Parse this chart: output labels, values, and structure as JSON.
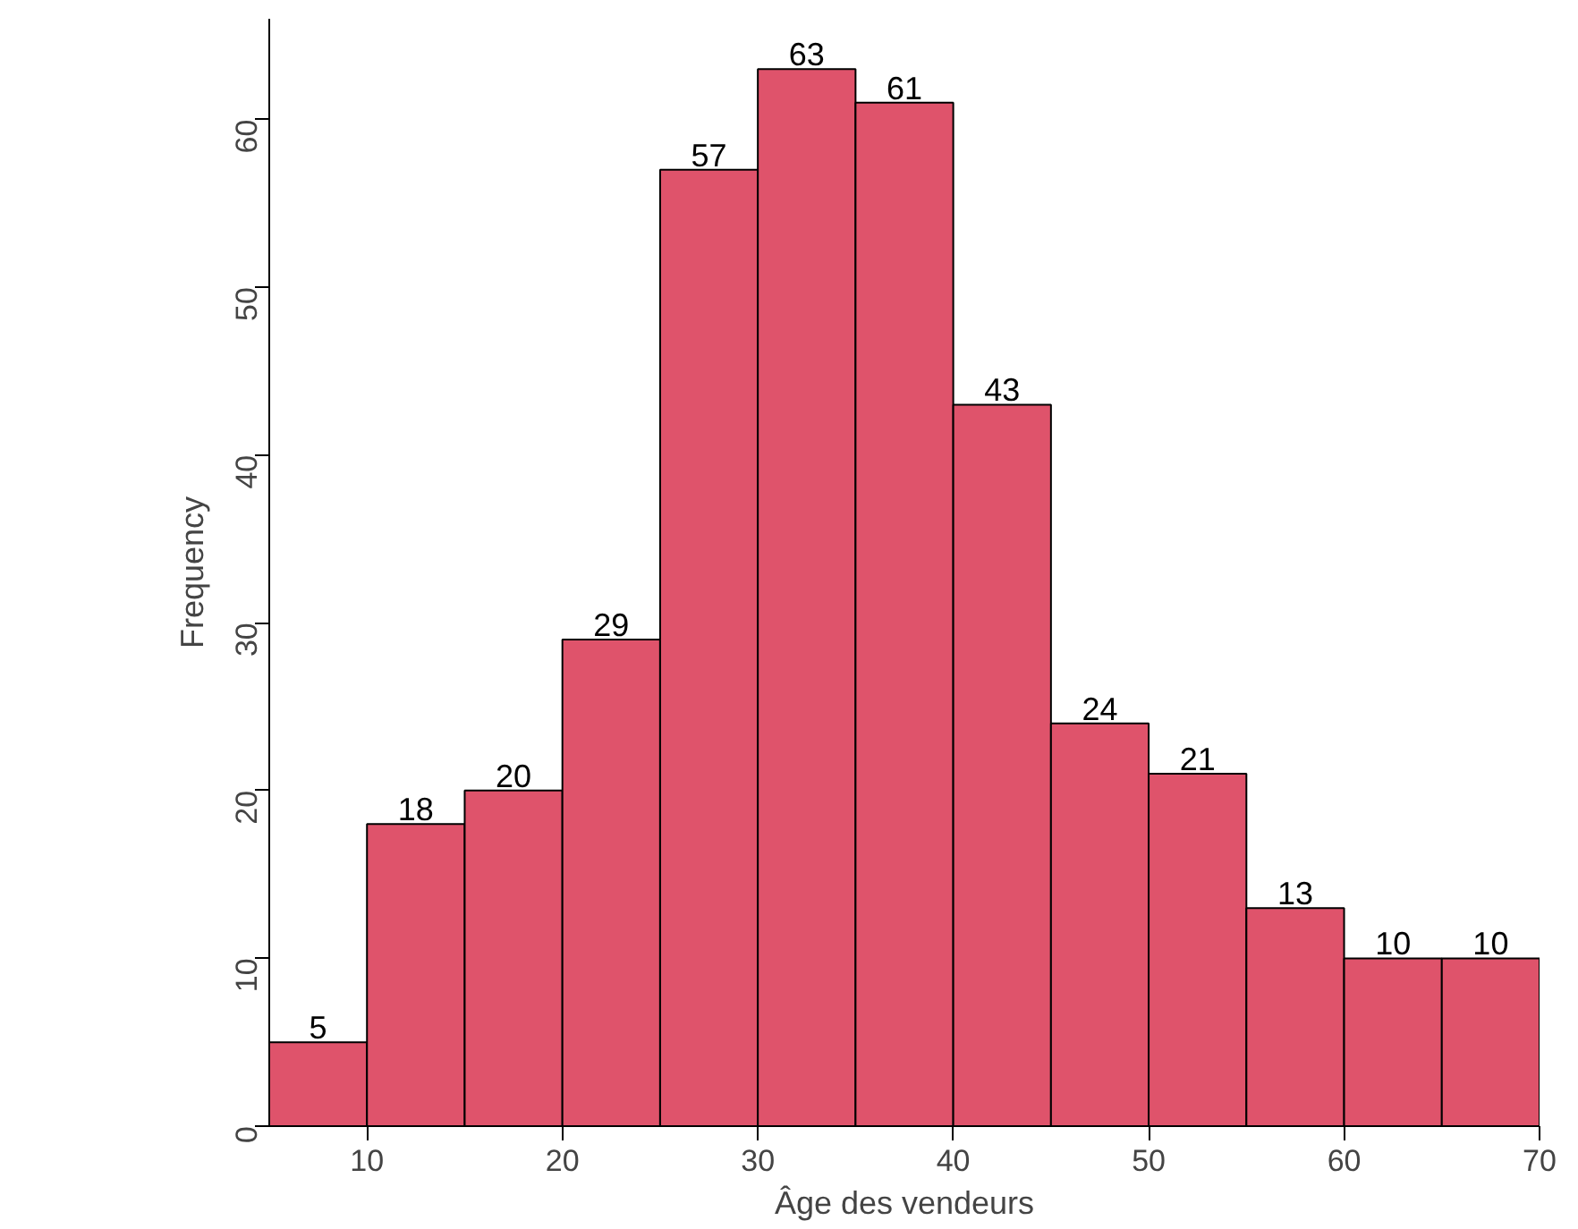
{
  "chart_data": {
    "type": "histogram",
    "xlabel": "Âge des vendeurs",
    "ylabel": "Frequency",
    "bins": [
      5,
      10,
      15,
      20,
      25,
      30,
      35,
      40,
      45,
      50,
      55,
      60,
      65,
      70
    ],
    "values": [
      5,
      18,
      20,
      29,
      57,
      63,
      61,
      43,
      24,
      21,
      13,
      10,
      10
    ],
    "color": "#df536b",
    "data_labels": true,
    "xlim": [
      5,
      70
    ],
    "ylim": [
      0,
      66
    ],
    "xticks": [
      10,
      20,
      30,
      40,
      50,
      60,
      70
    ],
    "yticks": [
      0,
      10,
      20,
      30,
      40,
      50,
      60
    ]
  }
}
